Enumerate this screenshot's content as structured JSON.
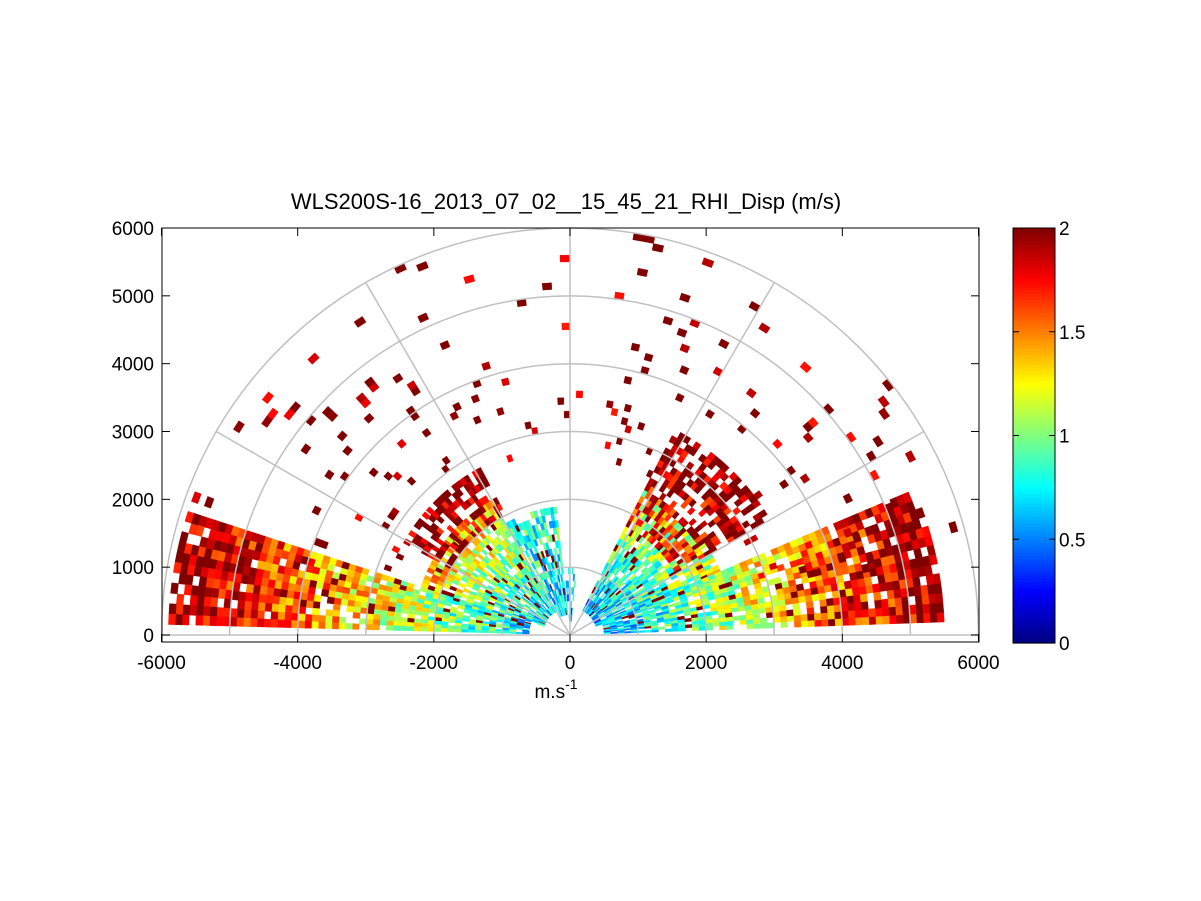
{
  "chart_data": {
    "type": "heatmap",
    "subtype": "polar-rhi-scan",
    "title": "WLS200S-16_2013_07_02__15_45_21_RHI_Disp (m/s)",
    "xlabel": "m.s",
    "xlabel_superscript": "-1",
    "ylabel": "",
    "xlim": [
      -6000,
      6000
    ],
    "ylim": [
      0,
      6000
    ],
    "x_ticks": [
      -6000,
      -4000,
      -2000,
      0,
      2000,
      4000,
      6000
    ],
    "x_tick_labels": [
      "-6000",
      "-4000",
      "-2000",
      "0",
      "2000",
      "4000",
      "6000"
    ],
    "y_ticks": [
      0,
      1000,
      2000,
      3000,
      4000,
      5000,
      6000
    ],
    "y_tick_labels": [
      "0",
      "1000",
      "2000",
      "3000",
      "4000",
      "5000",
      "6000"
    ],
    "polar_range_rings": [
      1000,
      2000,
      3000,
      4000,
      5000,
      6000
    ],
    "polar_radials_deg": [
      30,
      60,
      90,
      120,
      150
    ],
    "colorbar": {
      "colormap": "jet",
      "clim": [
        0,
        2
      ],
      "ticks": [
        0,
        0.5,
        1,
        1.5,
        2
      ],
      "tick_labels": [
        "0",
        "0.5",
        "1",
        "1.5",
        "2"
      ]
    },
    "range_gate_m": 100,
    "sectors": [
      {
        "name": "low-left",
        "az_deg": [
          162,
          178
        ],
        "range_m": [
          600,
          5900
        ],
        "value_near": 0.7,
        "value_far": 2.0,
        "density": 0.88
      },
      {
        "name": "mid-left",
        "az_deg": [
          120,
          162
        ],
        "range_m": [
          400,
          2300
        ],
        "value_near": 0.7,
        "value_far": 1.4,
        "density": 0.85
      },
      {
        "name": "mid-left-outer",
        "az_deg": [
          118,
          150
        ],
        "range_m": [
          2000,
          2800
        ],
        "value_near": 1.9,
        "value_far": 2.0,
        "density": 0.55
      },
      {
        "name": "center",
        "az_deg": [
          96,
          120
        ],
        "range_m": [
          300,
          1900
        ],
        "value_near": 0.65,
        "value_far": 0.9,
        "density": 0.7
      },
      {
        "name": "near-zenith",
        "az_deg": [
          84,
          96
        ],
        "range_m": [
          200,
          950
        ],
        "value_near": 0.6,
        "value_far": 0.8,
        "density": 0.45
      },
      {
        "name": "mid-right",
        "az_deg": [
          18,
          62
        ],
        "range_m": [
          400,
          2400
        ],
        "value_near": 0.6,
        "value_far": 1.2,
        "density": 0.85
      },
      {
        "name": "mid-right-outer",
        "az_deg": [
          30,
          62
        ],
        "range_m": [
          1800,
          3400
        ],
        "value_near": 1.7,
        "value_far": 2.0,
        "density": 0.6
      },
      {
        "name": "low-right",
        "az_deg": [
          2,
          22
        ],
        "range_m": [
          500,
          5500
        ],
        "value_near": 0.6,
        "value_far": 2.0,
        "density": 0.85
      },
      {
        "name": "scatter-upper",
        "az_deg": [
          12,
          168
        ],
        "range_m": [
          2500,
          6000
        ],
        "value_near": 2.0,
        "value_far": 2.0,
        "density": 0.04
      }
    ]
  }
}
